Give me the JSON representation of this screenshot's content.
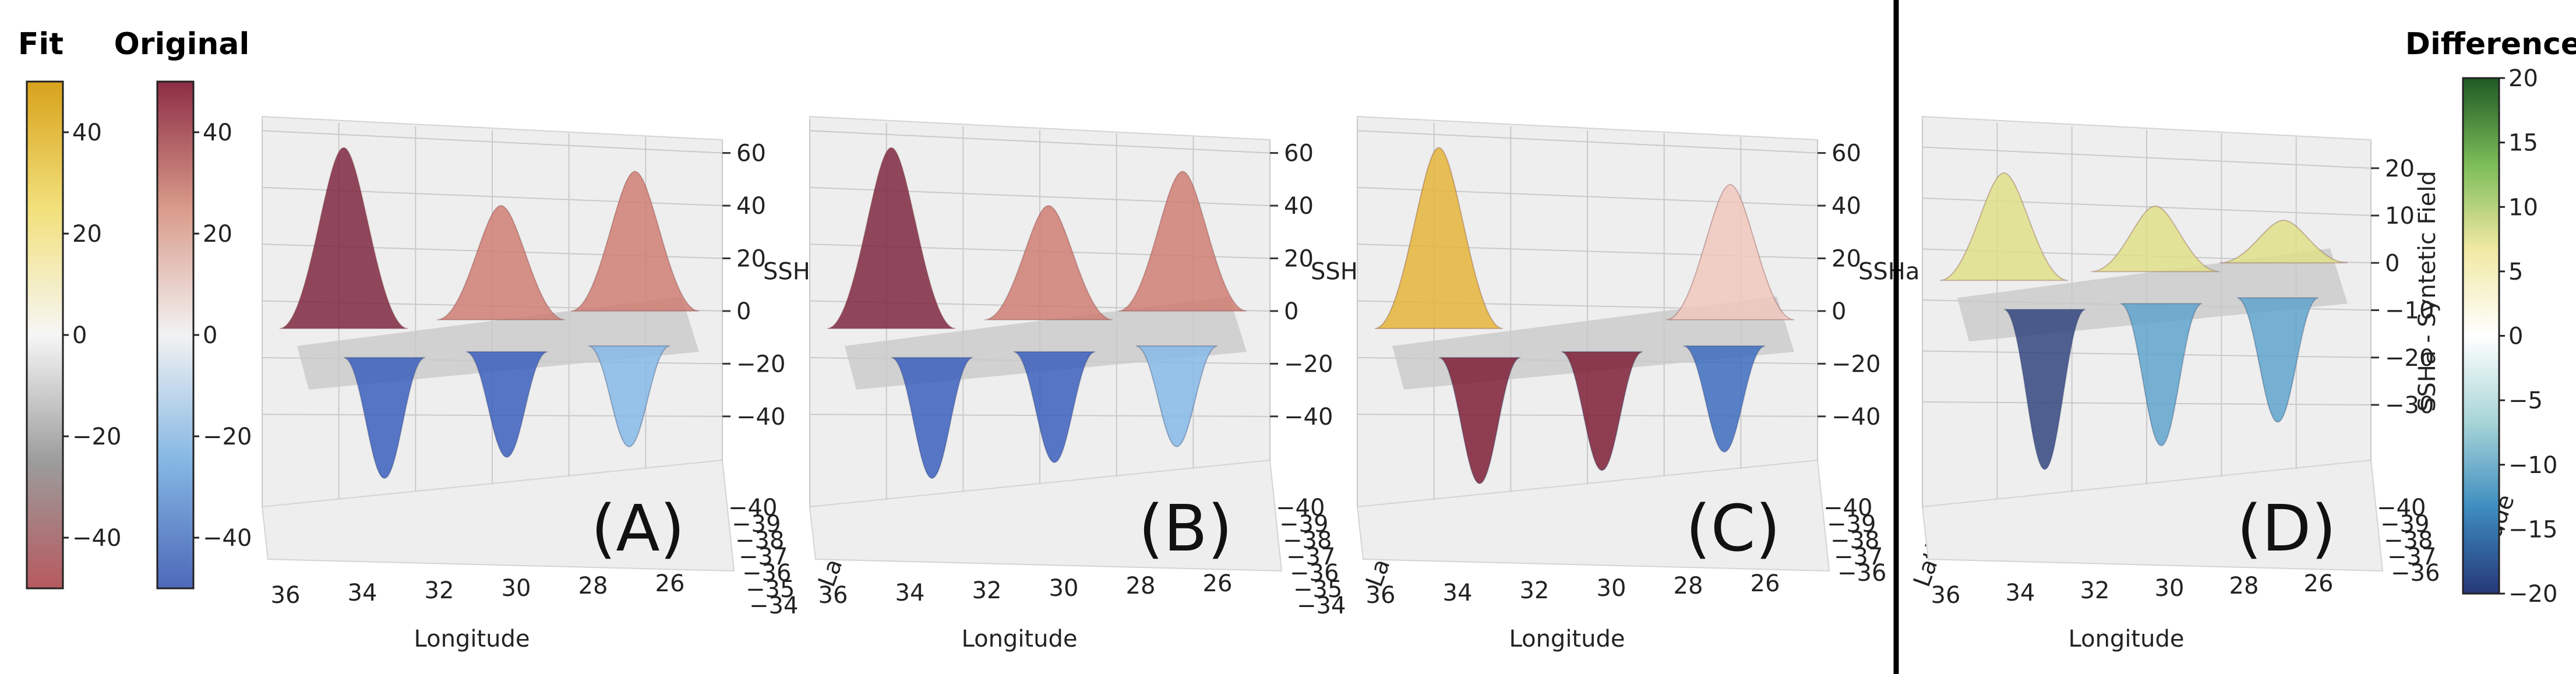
{
  "chart_data": [
    {
      "type": "surface",
      "panel_label": "(A)",
      "xlabel": "Longitude",
      "ylabel": "Latitude",
      "zlabel": "SSHa",
      "x_ticks": [
        "36",
        "34",
        "32",
        "30",
        "28",
        "26"
      ],
      "y_ticks": [
        "−40",
        "−39",
        "−38",
        "−37",
        "−36",
        "−35",
        "−34"
      ],
      "z_ticks": [
        "60",
        "40",
        "20",
        "0",
        "−20",
        "−40"
      ],
      "zlim": [
        -50,
        65
      ],
      "peaks_z": [
        62,
        40,
        53
      ],
      "troughs_z": [
        -48,
        -40,
        -36
      ]
    },
    {
      "type": "surface",
      "panel_label": "(B)",
      "xlabel": "Longitude",
      "ylabel": "Latitude",
      "zlabel": "SSHa",
      "x_ticks": [
        "36",
        "34",
        "32",
        "30",
        "28",
        "26"
      ],
      "y_ticks": [
        "−40",
        "−39",
        "−38",
        "−37",
        "−36",
        "−35",
        "−34"
      ],
      "z_ticks": [
        "60",
        "40",
        "20",
        "0",
        "−20",
        "−40"
      ],
      "zlim": [
        -50,
        65
      ],
      "peaks_z": [
        62,
        40,
        53
      ],
      "troughs_z": [
        -48,
        -42,
        -36
      ]
    },
    {
      "type": "surface",
      "panel_label": "(C)",
      "xlabel": "Longitude",
      "ylabel": "Latitude",
      "zlabel": "SSHa",
      "x_ticks": [
        "36",
        "34",
        "32",
        "30",
        "28",
        "26"
      ],
      "y_ticks": [
        "−40",
        "−39",
        "−38",
        "−37",
        "−36"
      ],
      "z_ticks": [
        "60",
        "40",
        "20",
        "0",
        "−20",
        "−40"
      ],
      "zlim": [
        -50,
        65
      ],
      "peaks_z": [
        62,
        48
      ],
      "troughs_z": [
        -50,
        -45,
        -38
      ]
    },
    {
      "type": "surface",
      "panel_label": "(D)",
      "xlabel": "Longitude",
      "ylabel": "Latitude",
      "zlabel": "SSHa - Syntetic Field",
      "x_ticks": [
        "36",
        "34",
        "32",
        "30",
        "28",
        "26"
      ],
      "y_ticks": [
        "−40",
        "−39",
        "−38",
        "−37",
        "−36"
      ],
      "z_ticks": [
        "20",
        "10",
        "0",
        "−10",
        "−20",
        "−30"
      ],
      "zlim": [
        -38,
        26
      ],
      "peaks_z": [
        19,
        12,
        9
      ],
      "troughs_z": [
        -35,
        -30,
        -25
      ]
    }
  ],
  "colorbars": {
    "fit": {
      "title": "Fit",
      "ticks": [
        "40",
        "20",
        "0",
        "−20",
        "−40"
      ],
      "range": [
        -50,
        50
      ],
      "colors": [
        "#b65a5f",
        "#9c9c9c",
        "#f6f6f6",
        "#f2e07a",
        "#d8a21c"
      ]
    },
    "original": {
      "title": "Original",
      "ticks": [
        "40",
        "20",
        "0",
        "−20",
        "−40"
      ],
      "range": [
        -50,
        50
      ],
      "colors": [
        "#4d68b8",
        "#84b7e3",
        "#f2f2f2",
        "#d99b8a",
        "#8c2d45"
      ]
    },
    "difference": {
      "title": "Difference",
      "ticks": [
        "20",
        "15",
        "10",
        "5",
        "0",
        "−5",
        "−10",
        "−15",
        "−20"
      ],
      "range": [
        -20,
        20
      ],
      "colors": [
        "#273878",
        "#3d8dc0",
        "#a8d5d7",
        "#ffffff",
        "#f1e9a4",
        "#7cbc58",
        "#1f5a24"
      ]
    }
  },
  "colors": {
    "plane": "#c9c9c9",
    "divider": "#000000"
  }
}
